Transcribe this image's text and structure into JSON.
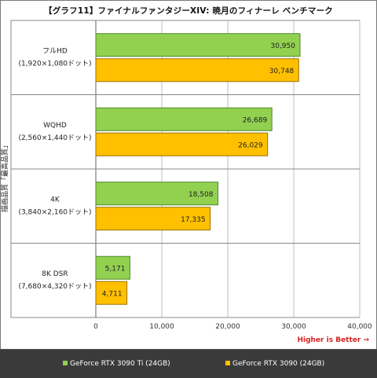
{
  "chart_data": {
    "type": "bar",
    "orientation": "horizontal",
    "title": "【グラフ11】ファイナルファンタジーXIV: 暁月のフィナーレ ベンチマーク",
    "ylabel": "描画品質「最高品質」",
    "xlabel": "",
    "categories": [
      {
        "name": "フルHD",
        "sub": "(1,920×1,080ドット)"
      },
      {
        "name": "WQHD",
        "sub": "(2,560×1,440ドット)"
      },
      {
        "name": "4K",
        "sub": "(3,840×2,160ドット)"
      },
      {
        "name": "8K DSR",
        "sub": "(7,680×4,320ドット)"
      }
    ],
    "series": [
      {
        "name": "GeForce RTX 3090 Ti (24GB)",
        "color": "#92d050",
        "border": "#4f8a2a",
        "values": [
          30950,
          26689,
          18508,
          5171
        ],
        "labels": [
          "30,950",
          "26,689",
          "18,508",
          "5,171"
        ]
      },
      {
        "name": "GeForce RTX 3090 (24GB)",
        "color": "#ffc000",
        "border": "#9a7000",
        "values": [
          30748,
          26029,
          17335,
          4711
        ],
        "labels": [
          "30,748",
          "26,029",
          "17,335",
          "4,711"
        ]
      }
    ],
    "xlim": [
      0,
      40000
    ],
    "xticks": [
      0,
      10000,
      20000,
      30000,
      40000
    ],
    "xtick_labels": [
      "0",
      "10,000",
      "20,000",
      "30,000",
      "40,000"
    ],
    "grid": true,
    "legend_position": "bottom",
    "note": "Higher is Better →"
  }
}
